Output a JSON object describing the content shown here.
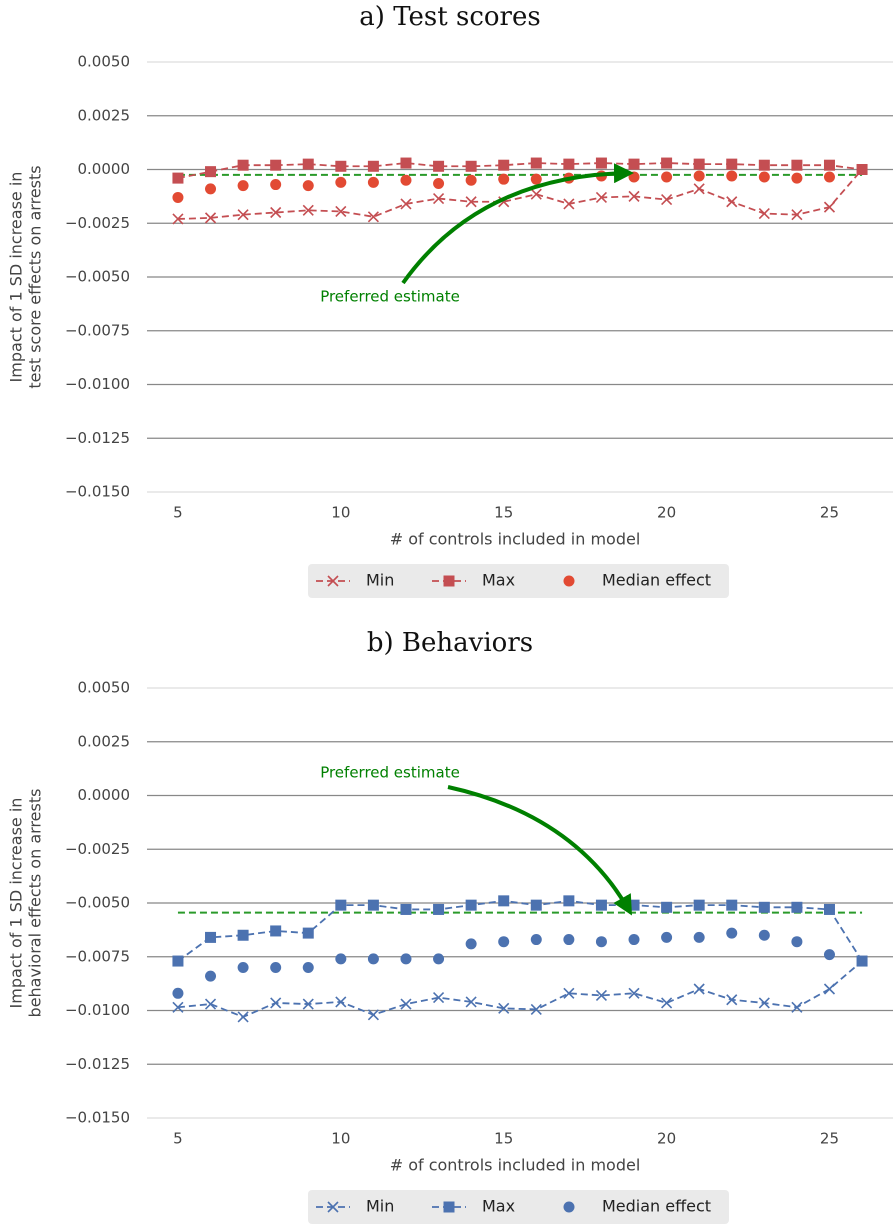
{
  "chart_data": [
    {
      "type": "line",
      "title": "a) Test scores",
      "xlabel": "# of controls included in model",
      "ylabel": [
        "Impact of 1 SD increase in",
        "test score effects on arrests"
      ],
      "x": [
        5,
        6,
        7,
        8,
        9,
        10,
        11,
        12,
        13,
        14,
        15,
        16,
        17,
        18,
        19,
        20,
        21,
        22,
        23,
        24,
        25,
        26
      ],
      "series": [
        {
          "name": "Min",
          "color": "#c44e52",
          "marker": "x",
          "linestyle": "dashed",
          "values": [
            -0.0023,
            -0.00225,
            -0.0021,
            -0.002,
            -0.0019,
            -0.00195,
            -0.0022,
            -0.0016,
            -0.00135,
            -0.0015,
            -0.0015,
            -0.00115,
            -0.0016,
            -0.0013,
            -0.00125,
            -0.0014,
            -0.0009,
            -0.0015,
            -0.00205,
            -0.0021,
            -0.00175,
            0.0
          ]
        },
        {
          "name": "Max",
          "color": "#c44e52",
          "marker": "s",
          "linestyle": "dashed",
          "values": [
            -0.0004,
            -0.0001,
            0.0002,
            0.0002,
            0.00025,
            0.00015,
            0.00015,
            0.0003,
            0.00015,
            0.00015,
            0.0002,
            0.0003,
            0.00025,
            0.0003,
            0.00025,
            0.0003,
            0.00025,
            0.00025,
            0.0002,
            0.0002,
            0.0002,
            0.0
          ]
        },
        {
          "name": "Median effect",
          "color": "#e24a33",
          "marker": "o",
          "linestyle": "none",
          "values": [
            -0.0013,
            -0.0009,
            -0.00075,
            -0.0007,
            -0.00075,
            -0.0006,
            -0.0006,
            -0.0005,
            -0.00065,
            -0.0005,
            -0.00045,
            -0.00045,
            -0.0004,
            -0.0003,
            -0.00035,
            -0.00035,
            -0.0003,
            -0.0003,
            -0.00035,
            -0.0004,
            -0.00035,
            null
          ]
        }
      ],
      "reference_line": {
        "value": -0.00025,
        "color": "#2a9a2a"
      },
      "annotation": "Preferred estimate",
      "annotation_color": "#008000",
      "xlim": [
        4.05,
        26.95
      ],
      "xticks": [
        5,
        10,
        15,
        20,
        25
      ],
      "ylim": [
        -0.015,
        0.005
      ],
      "yticks": [
        {
          "value": 0.005,
          "label": "0.0050"
        },
        {
          "value": 0.0025,
          "label": "0.0025"
        },
        {
          "value": 0,
          "label": "0.0000"
        },
        {
          "value": -0.0025,
          "label": "−0.0025"
        },
        {
          "value": -0.005,
          "label": "−0.0050"
        },
        {
          "value": -0.0075,
          "label": "−0.0075"
        },
        {
          "value": -0.01,
          "label": "−0.0100"
        },
        {
          "value": -0.0125,
          "label": "−0.0125"
        },
        {
          "value": -0.015,
          "label": "−0.0150"
        }
      ],
      "grid": true,
      "legend": "bottom"
    },
    {
      "type": "line",
      "title": "b) Behaviors",
      "xlabel": "# of controls included in model",
      "ylabel": [
        "Impact of 1 SD increase in",
        "behavioral effects on arrests"
      ],
      "x": [
        5,
        6,
        7,
        8,
        9,
        10,
        11,
        12,
        13,
        14,
        15,
        16,
        17,
        18,
        19,
        20,
        21,
        22,
        23,
        24,
        25,
        26
      ],
      "series": [
        {
          "name": "Min",
          "color": "#4c72b0",
          "marker": "x",
          "linestyle": "dashed",
          "values": [
            -0.00985,
            -0.0097,
            -0.0103,
            -0.00965,
            -0.0097,
            -0.0096,
            -0.0102,
            -0.0097,
            -0.0094,
            -0.0096,
            -0.0099,
            -0.00995,
            -0.0092,
            -0.0093,
            -0.0092,
            -0.00965,
            -0.009,
            -0.0095,
            -0.00965,
            -0.00985,
            -0.009,
            -0.0077
          ]
        },
        {
          "name": "Max",
          "color": "#4c72b0",
          "marker": "s",
          "linestyle": "dashed",
          "values": [
            -0.0077,
            -0.0066,
            -0.0065,
            -0.0063,
            -0.0064,
            -0.0051,
            -0.0051,
            -0.0053,
            -0.0053,
            -0.0051,
            -0.0049,
            -0.0051,
            -0.0049,
            -0.0051,
            -0.0051,
            -0.0052,
            -0.0051,
            -0.0051,
            -0.0052,
            -0.0052,
            -0.0053,
            -0.0077
          ]
        },
        {
          "name": "Median effect",
          "color": "#4c72b0",
          "marker": "o",
          "linestyle": "none",
          "values": [
            -0.0092,
            -0.0084,
            -0.008,
            -0.008,
            -0.008,
            -0.0076,
            -0.0076,
            -0.0076,
            -0.0076,
            -0.0069,
            -0.0068,
            -0.0067,
            -0.0067,
            -0.0068,
            -0.0067,
            -0.0066,
            -0.0066,
            -0.0064,
            -0.0065,
            -0.0068,
            -0.0074,
            null
          ]
        }
      ],
      "reference_line": {
        "value": -0.00545,
        "color": "#2a9a2a"
      },
      "annotation": "Preferred estimate",
      "annotation_color": "#008000",
      "xlim": [
        4.05,
        26.95
      ],
      "xticks": [
        5,
        10,
        15,
        20,
        25
      ],
      "ylim": [
        -0.015,
        0.005
      ],
      "yticks": [
        {
          "value": 0.005,
          "label": "0.0050"
        },
        {
          "value": 0.0025,
          "label": "0.0025"
        },
        {
          "value": 0,
          "label": "0.0000"
        },
        {
          "value": -0.0025,
          "label": "−0.0025"
        },
        {
          "value": -0.005,
          "label": "−0.0050"
        },
        {
          "value": -0.0075,
          "label": "−0.0075"
        },
        {
          "value": -0.01,
          "label": "−0.0100"
        },
        {
          "value": -0.0125,
          "label": "−0.0125"
        },
        {
          "value": -0.015,
          "label": "−0.0150"
        }
      ],
      "grid": true,
      "legend": "bottom"
    }
  ]
}
